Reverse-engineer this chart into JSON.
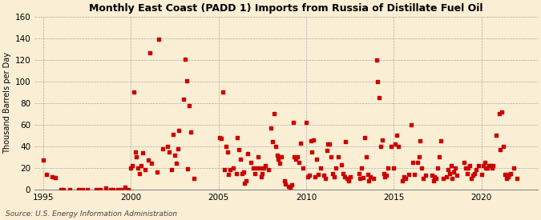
{
  "title": "Monthly East Coast (PADD 1) Imports from Russia of Distillate Fuel Oil",
  "ylabel": "Thousand Barrels per Day",
  "source": "Source: U.S. Energy Information Administration",
  "background_color": "#faefd4",
  "dot_color": "#cc0000",
  "xlim": [
    1994.5,
    2023.2
  ],
  "ylim": [
    0,
    160
  ],
  "yticks": [
    0,
    20,
    40,
    60,
    80,
    100,
    120,
    140,
    160
  ],
  "xticks": [
    1995,
    2000,
    2005,
    2010,
    2015,
    2020
  ],
  "data": [
    [
      1995.0,
      27
    ],
    [
      1995.17,
      14
    ],
    [
      1995.5,
      12
    ],
    [
      1995.67,
      11
    ],
    [
      1996.0,
      0
    ],
    [
      1996.17,
      0
    ],
    [
      1996.5,
      0
    ],
    [
      1997.0,
      0
    ],
    [
      1997.25,
      0
    ],
    [
      1997.5,
      0
    ],
    [
      1998.0,
      0
    ],
    [
      1998.25,
      0
    ],
    [
      1998.58,
      1
    ],
    [
      1998.83,
      0
    ],
    [
      1999.0,
      0
    ],
    [
      1999.25,
      0
    ],
    [
      1999.42,
      0
    ],
    [
      1999.67,
      2
    ],
    [
      1999.83,
      0
    ],
    [
      2000.0,
      20
    ],
    [
      2000.08,
      22
    ],
    [
      2000.17,
      90
    ],
    [
      2000.25,
      35
    ],
    [
      2000.33,
      30
    ],
    [
      2000.42,
      20
    ],
    [
      2000.5,
      15
    ],
    [
      2000.58,
      22
    ],
    [
      2000.67,
      34
    ],
    [
      2000.83,
      18
    ],
    [
      2001.0,
      27
    ],
    [
      2001.08,
      127
    ],
    [
      2001.17,
      24
    ],
    [
      2001.5,
      16
    ],
    [
      2001.58,
      139
    ],
    [
      2001.83,
      38
    ],
    [
      2002.08,
      40
    ],
    [
      2002.17,
      35
    ],
    [
      2002.33,
      18
    ],
    [
      2002.42,
      51
    ],
    [
      2002.5,
      32
    ],
    [
      2002.58,
      24
    ],
    [
      2002.67,
      38
    ],
    [
      2002.75,
      55
    ],
    [
      2003.0,
      84
    ],
    [
      2003.08,
      121
    ],
    [
      2003.17,
      101
    ],
    [
      2003.25,
      19
    ],
    [
      2003.33,
      78
    ],
    [
      2003.42,
      53
    ],
    [
      2003.58,
      10
    ],
    [
      2005.08,
      48
    ],
    [
      2005.17,
      47
    ],
    [
      2005.25,
      90
    ],
    [
      2005.33,
      18
    ],
    [
      2005.42,
      40
    ],
    [
      2005.5,
      35
    ],
    [
      2005.58,
      14
    ],
    [
      2005.67,
      18
    ],
    [
      2005.83,
      20
    ],
    [
      2006.0,
      15
    ],
    [
      2006.08,
      48
    ],
    [
      2006.17,
      37
    ],
    [
      2006.25,
      28
    ],
    [
      2006.33,
      15
    ],
    [
      2006.42,
      16
    ],
    [
      2006.5,
      6
    ],
    [
      2006.58,
      8
    ],
    [
      2006.67,
      33
    ],
    [
      2006.83,
      25
    ],
    [
      2007.0,
      20
    ],
    [
      2007.08,
      15
    ],
    [
      2007.17,
      20
    ],
    [
      2007.25,
      30
    ],
    [
      2007.33,
      20
    ],
    [
      2007.42,
      12
    ],
    [
      2007.5,
      15
    ],
    [
      2007.58,
      20
    ],
    [
      2007.67,
      22
    ],
    [
      2007.83,
      18
    ],
    [
      2008.0,
      57
    ],
    [
      2008.08,
      44
    ],
    [
      2008.17,
      70
    ],
    [
      2008.25,
      40
    ],
    [
      2008.33,
      32
    ],
    [
      2008.42,
      28
    ],
    [
      2008.5,
      24
    ],
    [
      2008.58,
      30
    ],
    [
      2008.75,
      8
    ],
    [
      2008.83,
      5
    ],
    [
      2009.0,
      3
    ],
    [
      2009.08,
      2
    ],
    [
      2009.17,
      4
    ],
    [
      2009.25,
      62
    ],
    [
      2009.33,
      30
    ],
    [
      2009.42,
      28
    ],
    [
      2009.5,
      30
    ],
    [
      2009.58,
      25
    ],
    [
      2009.67,
      43
    ],
    [
      2009.83,
      20
    ],
    [
      2010.0,
      62
    ],
    [
      2010.08,
      12
    ],
    [
      2010.17,
      13
    ],
    [
      2010.25,
      45
    ],
    [
      2010.33,
      35
    ],
    [
      2010.42,
      46
    ],
    [
      2010.5,
      12
    ],
    [
      2010.58,
      28
    ],
    [
      2010.67,
      14
    ],
    [
      2010.83,
      20
    ],
    [
      2011.0,
      13
    ],
    [
      2011.08,
      10
    ],
    [
      2011.17,
      36
    ],
    [
      2011.25,
      42
    ],
    [
      2011.33,
      42
    ],
    [
      2011.42,
      30
    ],
    [
      2011.5,
      15
    ],
    [
      2011.58,
      12
    ],
    [
      2011.67,
      20
    ],
    [
      2011.83,
      30
    ],
    [
      2012.0,
      23
    ],
    [
      2012.08,
      15
    ],
    [
      2012.17,
      12
    ],
    [
      2012.25,
      44
    ],
    [
      2012.33,
      10
    ],
    [
      2012.42,
      8
    ],
    [
      2012.5,
      12
    ],
    [
      2013.0,
      15
    ],
    [
      2013.08,
      10
    ],
    [
      2013.17,
      20
    ],
    [
      2013.25,
      11
    ],
    [
      2013.33,
      48
    ],
    [
      2013.42,
      30
    ],
    [
      2013.5,
      14
    ],
    [
      2013.58,
      8
    ],
    [
      2013.67,
      12
    ],
    [
      2013.83,
      10
    ],
    [
      2014.0,
      120
    ],
    [
      2014.08,
      100
    ],
    [
      2014.17,
      85
    ],
    [
      2014.25,
      40
    ],
    [
      2014.33,
      46
    ],
    [
      2014.42,
      15
    ],
    [
      2014.5,
      12
    ],
    [
      2014.58,
      13
    ],
    [
      2014.67,
      20
    ],
    [
      2014.83,
      40
    ],
    [
      2015.0,
      20
    ],
    [
      2015.08,
      42
    ],
    [
      2015.17,
      50
    ],
    [
      2015.25,
      40
    ],
    [
      2015.5,
      8
    ],
    [
      2015.58,
      12
    ],
    [
      2015.67,
      10
    ],
    [
      2015.83,
      14
    ],
    [
      2016.0,
      60
    ],
    [
      2016.08,
      25
    ],
    [
      2016.17,
      14
    ],
    [
      2016.33,
      25
    ],
    [
      2016.42,
      30
    ],
    [
      2016.5,
      45
    ],
    [
      2016.58,
      20
    ],
    [
      2016.67,
      10
    ],
    [
      2016.83,
      13
    ],
    [
      2017.17,
      13
    ],
    [
      2017.25,
      8
    ],
    [
      2017.33,
      12
    ],
    [
      2017.42,
      10
    ],
    [
      2017.5,
      20
    ],
    [
      2017.58,
      30
    ],
    [
      2017.67,
      45
    ],
    [
      2017.83,
      10
    ],
    [
      2018.0,
      12
    ],
    [
      2018.08,
      18
    ],
    [
      2018.17,
      15
    ],
    [
      2018.25,
      22
    ],
    [
      2018.33,
      10
    ],
    [
      2018.42,
      16
    ],
    [
      2018.5,
      20
    ],
    [
      2018.58,
      13
    ],
    [
      2019.0,
      25
    ],
    [
      2019.08,
      20
    ],
    [
      2019.17,
      15
    ],
    [
      2019.25,
      20
    ],
    [
      2019.33,
      22
    ],
    [
      2019.42,
      10
    ],
    [
      2019.5,
      13
    ],
    [
      2019.58,
      15
    ],
    [
      2019.67,
      18
    ],
    [
      2019.83,
      22
    ],
    [
      2020.0,
      14
    ],
    [
      2020.08,
      22
    ],
    [
      2020.17,
      25
    ],
    [
      2020.25,
      20
    ],
    [
      2020.33,
      20
    ],
    [
      2020.42,
      22
    ],
    [
      2020.5,
      22
    ],
    [
      2020.58,
      20
    ],
    [
      2020.67,
      22
    ],
    [
      2020.83,
      50
    ],
    [
      2021.0,
      70
    ],
    [
      2021.08,
      37
    ],
    [
      2021.17,
      72
    ],
    [
      2021.25,
      40
    ],
    [
      2021.33,
      14
    ],
    [
      2021.42,
      10
    ],
    [
      2021.5,
      12
    ],
    [
      2021.58,
      14
    ],
    [
      2021.67,
      15
    ],
    [
      2021.83,
      20
    ],
    [
      2022.0,
      10
    ]
  ]
}
